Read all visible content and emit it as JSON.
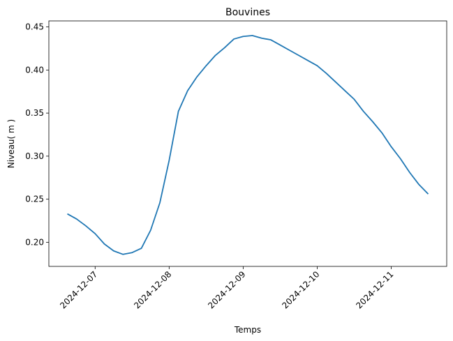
{
  "chart_data": {
    "type": "line",
    "title": "Bouvines",
    "xlabel": "Temps",
    "ylabel": "Niveau( m )",
    "x": [
      "2024-12-06T15:00",
      "2024-12-06T18:00",
      "2024-12-06T21:00",
      "2024-12-07T00:00",
      "2024-12-07T03:00",
      "2024-12-07T06:00",
      "2024-12-07T09:00",
      "2024-12-07T12:00",
      "2024-12-07T15:00",
      "2024-12-07T18:00",
      "2024-12-07T21:00",
      "2024-12-08T00:00",
      "2024-12-08T03:00",
      "2024-12-08T06:00",
      "2024-12-08T09:00",
      "2024-12-08T12:00",
      "2024-12-08T15:00",
      "2024-12-08T18:00",
      "2024-12-08T21:00",
      "2024-12-09T00:00",
      "2024-12-09T03:00",
      "2024-12-09T06:00",
      "2024-12-09T09:00",
      "2024-12-09T12:00",
      "2024-12-09T15:00",
      "2024-12-09T18:00",
      "2024-12-09T21:00",
      "2024-12-10T00:00",
      "2024-12-10T03:00",
      "2024-12-10T06:00",
      "2024-12-10T09:00",
      "2024-12-10T12:00",
      "2024-12-10T15:00",
      "2024-12-10T18:00",
      "2024-12-10T21:00",
      "2024-12-11T00:00",
      "2024-12-11T03:00",
      "2024-12-11T06:00",
      "2024-12-11T09:00",
      "2024-12-11T12:00"
    ],
    "series": [
      {
        "name": "Niveau",
        "color": "#1f77b4",
        "values": [
          0.233,
          0.227,
          0.219,
          0.21,
          0.198,
          0.19,
          0.186,
          0.188,
          0.193,
          0.214,
          0.246,
          0.295,
          0.352,
          0.376,
          0.392,
          0.405,
          0.417,
          0.426,
          0.436,
          0.439,
          0.44,
          0.437,
          0.435,
          0.429,
          0.423,
          0.417,
          0.411,
          0.405,
          0.396,
          0.386,
          0.376,
          0.366,
          0.352,
          0.34,
          0.327,
          0.311,
          0.297,
          0.281,
          0.267,
          0.256
        ]
      }
    ],
    "xlim": [
      "2024-12-06T09:00",
      "2024-12-11T18:00"
    ],
    "xticks": [
      "2024-12-07",
      "2024-12-08",
      "2024-12-09",
      "2024-12-10",
      "2024-12-11"
    ],
    "ylim": [
      0.172,
      0.457
    ],
    "yticks": [
      {
        "value": 0.2,
        "label": "0.20"
      },
      0.25,
      {
        "value": 0.3,
        "label": "0.30"
      },
      0.35,
      {
        "value": 0.4,
        "label": "0.40"
      },
      0.45
    ],
    "grid": false
  }
}
